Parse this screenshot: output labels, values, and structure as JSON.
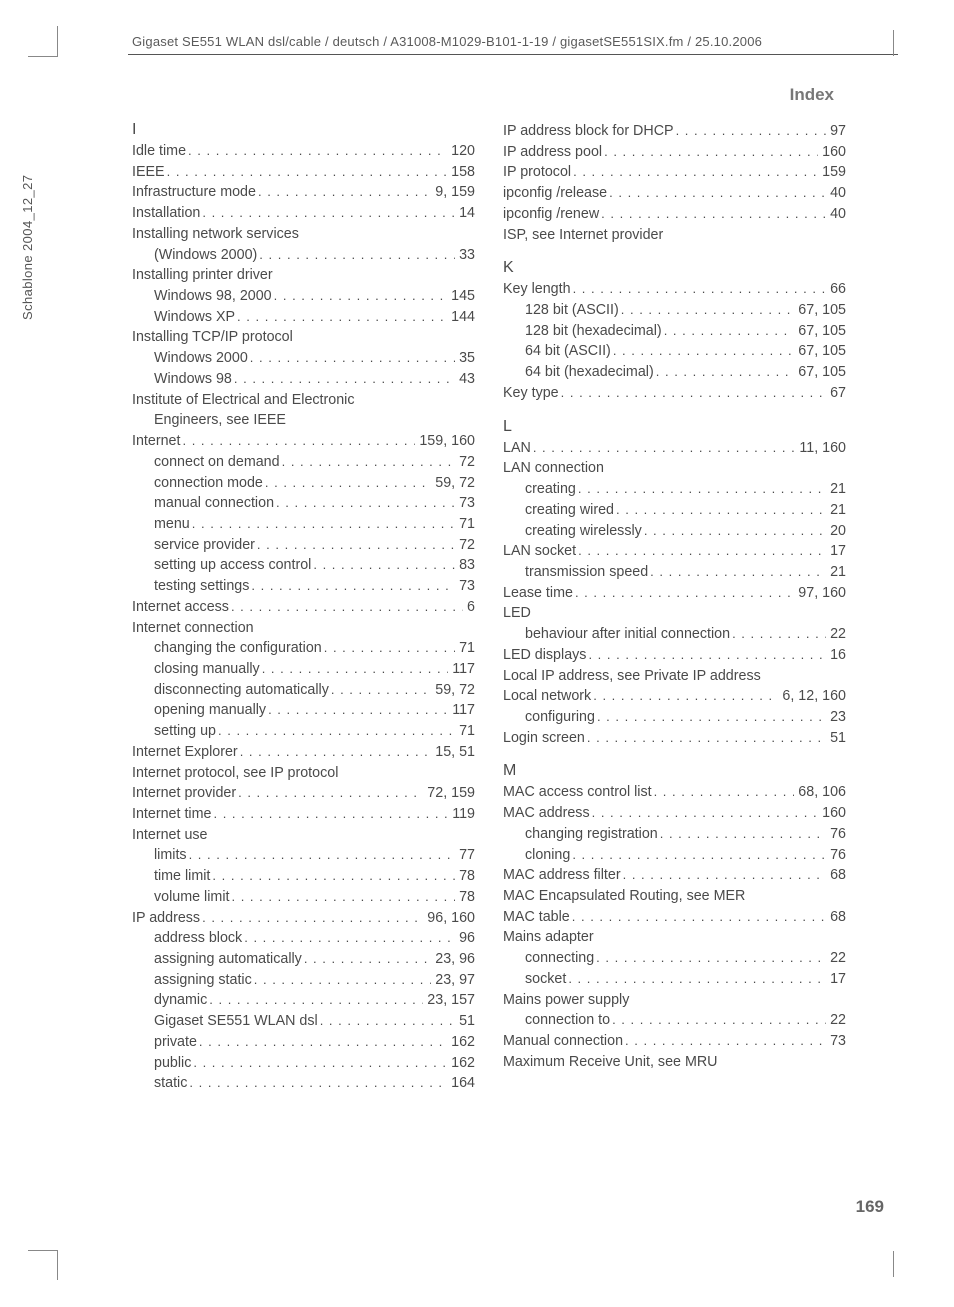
{
  "header": {
    "path": "Gigaset SE551 WLAN dsl/cable / deutsch / A31008-M1029-B101-1-19 / gigasetSE551SIX.fm / 25.10.2006"
  },
  "side_text": "Schablone 2004_12_27",
  "index_title": "Index",
  "page_number": "169",
  "columns": [
    {
      "sections": [
        {
          "letter": "I",
          "entries": [
            {
              "label": "Idle time",
              "pages": "120"
            },
            {
              "label": "IEEE",
              "pages": "158"
            },
            {
              "label": "Infrastructure mode",
              "pages": "9, 159"
            },
            {
              "label": "Installation",
              "pages": "14"
            },
            {
              "label": "Installing network services",
              "nopage": true
            },
            {
              "label": "(Windows 2000)",
              "pages": "33",
              "sub": true
            },
            {
              "label": "Installing printer driver",
              "nopage": true
            },
            {
              "label": "Windows 98, 2000",
              "pages": "145",
              "sub": true
            },
            {
              "label": "Windows XP",
              "pages": "144",
              "sub": true
            },
            {
              "label": "Installing TCP/IP protocol",
              "nopage": true
            },
            {
              "label": "Windows 2000",
              "pages": "35",
              "sub": true
            },
            {
              "label": "Windows 98",
              "pages": "43",
              "sub": true
            },
            {
              "label": "Institute of Electrical and Electronic",
              "nopage": true
            },
            {
              "label": "Engineers, see IEEE",
              "nopage": true,
              "sub": true
            },
            {
              "label": "Internet",
              "pages": "159, 160"
            },
            {
              "label": "connect on demand",
              "pages": "72",
              "sub": true
            },
            {
              "label": "connection mode",
              "pages": "59, 72",
              "sub": true
            },
            {
              "label": "manual connection",
              "pages": "73",
              "sub": true
            },
            {
              "label": "menu",
              "pages": "71",
              "sub": true
            },
            {
              "label": "service provider",
              "pages": "72",
              "sub": true
            },
            {
              "label": "setting up access control",
              "pages": "83",
              "sub": true
            },
            {
              "label": "testing settings",
              "pages": "73",
              "sub": true
            },
            {
              "label": "Internet access",
              "pages": "6"
            },
            {
              "label": "Internet connection",
              "nopage": true
            },
            {
              "label": "changing the configuration",
              "pages": "71",
              "sub": true
            },
            {
              "label": "closing manually",
              "pages": "117",
              "sub": true
            },
            {
              "label": "disconnecting automatically",
              "pages": "59, 72",
              "sub": true
            },
            {
              "label": "opening manually",
              "pages": "117",
              "sub": true
            },
            {
              "label": "setting up",
              "pages": "71",
              "sub": true
            },
            {
              "label": "Internet Explorer",
              "pages": "15, 51"
            },
            {
              "label": "Internet protocol, see IP protocol",
              "nopage": true
            },
            {
              "label": "Internet provider",
              "pages": "72, 159"
            },
            {
              "label": "Internet time",
              "pages": "119"
            },
            {
              "label": "Internet use",
              "nopage": true
            },
            {
              "label": "limits",
              "pages": "77",
              "sub": true
            },
            {
              "label": "time limit",
              "pages": "78",
              "sub": true
            },
            {
              "label": "volume limit",
              "pages": "78",
              "sub": true
            },
            {
              "label": "IP address",
              "pages": "96, 160"
            },
            {
              "label": "address block",
              "pages": "96",
              "sub": true
            },
            {
              "label": "assigning automatically",
              "pages": "23, 96",
              "sub": true
            },
            {
              "label": "assigning static",
              "pages": "23, 97",
              "sub": true
            },
            {
              "label": "dynamic",
              "pages": "23, 157",
              "sub": true
            },
            {
              "label": "Gigaset SE551 WLAN dsl",
              "pages": "51",
              "sub": true
            },
            {
              "label": "private",
              "pages": "162",
              "sub": true
            },
            {
              "label": "public",
              "pages": "162",
              "sub": true
            },
            {
              "label": "static",
              "pages": "164",
              "sub": true
            }
          ]
        }
      ]
    },
    {
      "sections": [
        {
          "letter": "",
          "entries": [
            {
              "label": "IP address block for DHCP",
              "pages": "97"
            },
            {
              "label": "IP address pool",
              "pages": "160"
            },
            {
              "label": "IP protocol",
              "pages": "159"
            },
            {
              "label": "ipconfig /release",
              "pages": "40"
            },
            {
              "label": "ipconfig /renew",
              "pages": "40"
            },
            {
              "label": "ISP, see Internet provider",
              "nopage": true
            }
          ]
        },
        {
          "letter": "K",
          "entries": [
            {
              "label": "Key length",
              "pages": "66"
            },
            {
              "label": "128 bit (ASCII)",
              "pages": "67, 105",
              "sub": true
            },
            {
              "label": "128 bit (hexadecimal)",
              "pages": "67, 105",
              "sub": true
            },
            {
              "label": "64 bit (ASCII)",
              "pages": "67, 105",
              "sub": true
            },
            {
              "label": "64 bit (hexadecimal)",
              "pages": "67, 105",
              "sub": true
            },
            {
              "label": "Key type",
              "pages": "67"
            }
          ]
        },
        {
          "letter": "L",
          "entries": [
            {
              "label": "LAN",
              "pages": "11, 160"
            },
            {
              "label": "LAN connection",
              "nopage": true
            },
            {
              "label": "creating",
              "pages": "21",
              "sub": true
            },
            {
              "label": "creating wired",
              "pages": "21",
              "sub": true
            },
            {
              "label": "creating wirelessly",
              "pages": "20",
              "sub": true
            },
            {
              "label": "LAN socket",
              "pages": "17"
            },
            {
              "label": "transmission speed",
              "pages": "21",
              "sub": true
            },
            {
              "label": "Lease time",
              "pages": "97, 160"
            },
            {
              "label": "LED",
              "nopage": true
            },
            {
              "label": "behaviour after initial connection",
              "pages": "22",
              "sub": true
            },
            {
              "label": "LED displays",
              "pages": "16"
            },
            {
              "label": "Local IP address, see Private IP address",
              "nopage": true
            },
            {
              "label": "Local network",
              "pages": "6, 12, 160"
            },
            {
              "label": "configuring",
              "pages": "23",
              "sub": true
            },
            {
              "label": "Login screen",
              "pages": "51"
            }
          ]
        },
        {
          "letter": "M",
          "entries": [
            {
              "label": "MAC access control list",
              "pages": "68, 106"
            },
            {
              "label": "MAC address",
              "pages": "160"
            },
            {
              "label": "changing registration",
              "pages": "76",
              "sub": true
            },
            {
              "label": "cloning",
              "pages": "76",
              "sub": true
            },
            {
              "label": "MAC address filter",
              "pages": "68"
            },
            {
              "label": "MAC Encapsulated Routing, see MER",
              "nopage": true
            },
            {
              "label": "MAC table",
              "pages": "68"
            },
            {
              "label": "Mains adapter",
              "nopage": true
            },
            {
              "label": "connecting",
              "pages": "22",
              "sub": true
            },
            {
              "label": "socket",
              "pages": "17",
              "sub": true
            },
            {
              "label": "Mains power supply",
              "nopage": true
            },
            {
              "label": "connection to",
              "pages": "22",
              "sub": true
            },
            {
              "label": "Manual connection",
              "pages": "73"
            },
            {
              "label": "Maximum Receive Unit, see MRU",
              "nopage": true
            }
          ]
        }
      ]
    }
  ]
}
